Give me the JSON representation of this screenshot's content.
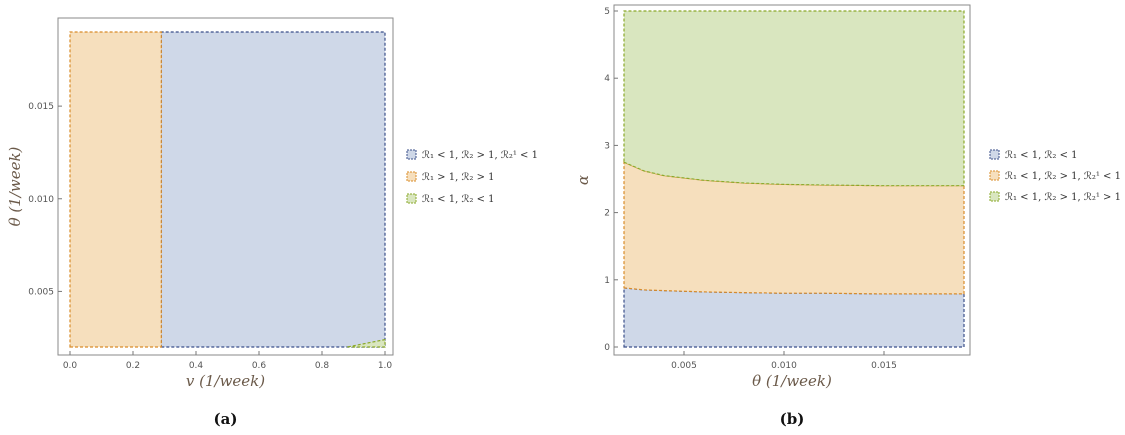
{
  "chart_data": [
    {
      "type": "area",
      "caption": "(a)",
      "xlabel": "v (1/week)",
      "ylabel": "θ (1/week)",
      "xlim": [
        0,
        1
      ],
      "ylim": [
        0.002,
        0.019
      ],
      "xticks": [
        0.0,
        0.2,
        0.4,
        0.6,
        0.8,
        1.0
      ],
      "xtick_labels": [
        "0.0",
        "0.2",
        "0.4",
        "0.6",
        "0.8",
        "1.0"
      ],
      "yticks": [
        0.005,
        0.01,
        0.015
      ],
      "ytick_labels": [
        "0.005",
        "0.010",
        "0.015"
      ],
      "grid": false,
      "legend_position": "right",
      "series": [
        {
          "name": "ℛ₁ < 1, ℛ₂ > 1, ℛ₂¹ < 1",
          "color": "#cfd8e8",
          "edge": "#3b4f8a",
          "polygon": [
            [
              0.29,
              0.002
            ],
            [
              1.0,
              0.002
            ],
            [
              1.0,
              0.019
            ],
            [
              0.29,
              0.019
            ]
          ]
        },
        {
          "name": "ℛ₁ > 1, ℛ₂ > 1",
          "color": "#f6dfbd",
          "edge": "#d98c2a",
          "polygon": [
            [
              0.0,
              0.002
            ],
            [
              0.29,
              0.002
            ],
            [
              0.29,
              0.019
            ],
            [
              0.0,
              0.019
            ]
          ]
        },
        {
          "name": "ℛ₁ < 1, ℛ₂ < 1",
          "color": "#d9e6bf",
          "edge": "#8aa829",
          "polygon": [
            [
              0.88,
              0.002
            ],
            [
              1.0,
              0.002
            ],
            [
              1.0,
              0.0024
            ]
          ]
        }
      ]
    },
    {
      "type": "area",
      "caption": "(b)",
      "xlabel": "θ (1/week)",
      "ylabel": "α",
      "xlim": [
        0.002,
        0.019
      ],
      "ylim": [
        0,
        5
      ],
      "xticks": [
        0.005,
        0.01,
        0.015
      ],
      "xtick_labels": [
        "0.005",
        "0.010",
        "0.015"
      ],
      "yticks": [
        0,
        1,
        2,
        3,
        4,
        5
      ],
      "ytick_labels": [
        "0",
        "1",
        "2",
        "3",
        "4",
        "5"
      ],
      "grid": false,
      "legend_position": "right",
      "boundaries": {
        "lower": {
          "theta": [
            0.002,
            0.003,
            0.004,
            0.006,
            0.008,
            0.01,
            0.012,
            0.015,
            0.019
          ],
          "alpha": [
            0.88,
            0.85,
            0.84,
            0.82,
            0.81,
            0.8,
            0.8,
            0.79,
            0.79
          ]
        },
        "upper": {
          "theta": [
            0.002,
            0.003,
            0.004,
            0.006,
            0.008,
            0.01,
            0.012,
            0.015,
            0.019
          ],
          "alpha": [
            2.75,
            2.62,
            2.55,
            2.48,
            2.44,
            2.42,
            2.41,
            2.4,
            2.4
          ]
        }
      },
      "series": [
        {
          "name": "ℛ₁ < 1, ℛ₂ < 1",
          "color": "#cfd8e8",
          "edge": "#3b4f8a",
          "region": "below-lower"
        },
        {
          "name": "ℛ₁ < 1, ℛ₂ > 1, ℛ₂¹ < 1",
          "color": "#f6dfbd",
          "edge": "#d98c2a",
          "region": "between"
        },
        {
          "name": "ℛ₁ < 1, ℛ₂ > 1, ℛ₂¹ > 1",
          "color": "#d9e6bf",
          "edge": "#8aa829",
          "region": "above-upper"
        }
      ]
    }
  ]
}
